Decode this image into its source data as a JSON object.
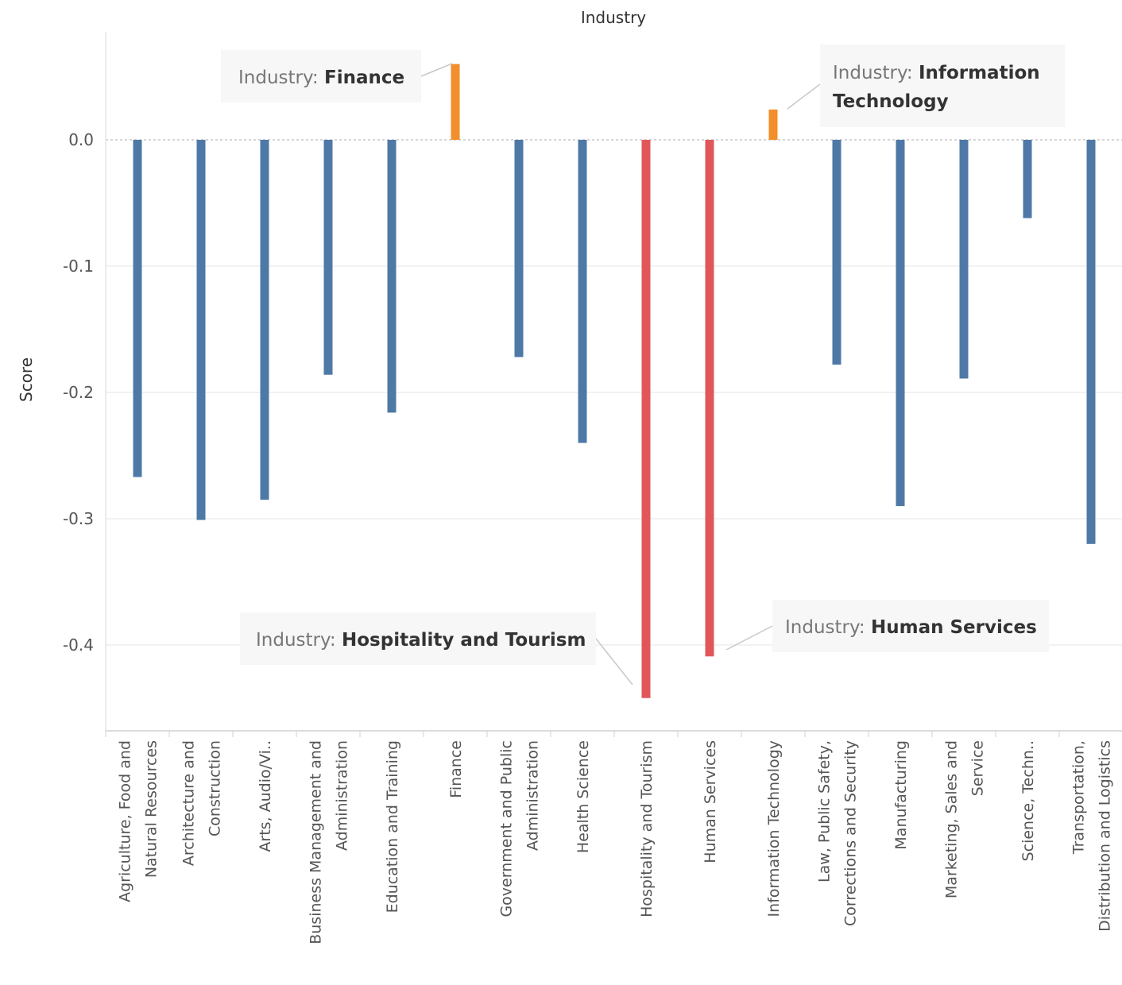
{
  "chart_data": {
    "type": "bar",
    "title": "Industry",
    "xlabel": "",
    "ylabel": "Score",
    "ylim": [
      -0.46,
      0.085
    ],
    "y_ticks": [
      0.0,
      -0.1,
      -0.2,
      -0.3,
      -0.4
    ],
    "y_tick_labels": [
      "0.0",
      "-0.1",
      "-0.2",
      "-0.3",
      "-0.4"
    ],
    "grid": true,
    "categories": [
      "Agriculture, Food and Natural Resources",
      "Architecture and Construction",
      "Arts, Audio/Vi..",
      "Business Management and Administration",
      "Education and Training",
      "Finance",
      "Government and Public Administration",
      "Health Science",
      "Hospitality and Tourism",
      "Human Services",
      "Information Technology",
      "Law, Public Safety, Corrections and Security",
      "Manufacturing",
      "Marketing, Sales and Service",
      "Science, Techn..",
      "Transportation, Distribution and Logistics"
    ],
    "category_label_lines": [
      [
        "Agriculture, Food and",
        "Natural Resources"
      ],
      [
        "Architecture and",
        "Construction"
      ],
      [
        "Arts, Audio/Vi.."
      ],
      [
        "Business Management and",
        "Administration"
      ],
      [
        "Education and Training"
      ],
      [
        "Finance"
      ],
      [
        "Government and Public",
        "Administration"
      ],
      [
        "Health Science"
      ],
      [
        "Hospitality and Tourism"
      ],
      [
        "Human Services"
      ],
      [
        "Information Technology"
      ],
      [
        "Law, Public Safety,",
        "Corrections and Security"
      ],
      [
        "Manufacturing"
      ],
      [
        "Marketing, Sales and",
        "Service"
      ],
      [
        "Science, Techn.."
      ],
      [
        "Transportation,",
        "Distribution and Logistics"
      ]
    ],
    "values": [
      -0.267,
      -0.301,
      -0.285,
      -0.186,
      -0.216,
      0.06,
      -0.172,
      -0.24,
      -0.442,
      -0.409,
      0.024,
      -0.178,
      -0.29,
      -0.189,
      -0.062,
      -0.32
    ],
    "bar_colors": [
      "#4e79a7",
      "#4e79a7",
      "#4e79a7",
      "#4e79a7",
      "#4e79a7",
      "#f28e2b",
      "#4e79a7",
      "#4e79a7",
      "#e15759",
      "#e15759",
      "#f28e2b",
      "#4e79a7",
      "#4e79a7",
      "#4e79a7",
      "#4e79a7",
      "#4e79a7"
    ],
    "annotations": [
      {
        "category": "Finance",
        "prefix": "Industry: ",
        "lines": [
          "Finance"
        ]
      },
      {
        "category": "Information Technology",
        "prefix": "Industry: ",
        "lines": [
          "Information",
          "Technology"
        ]
      },
      {
        "category": "Hospitality and Tourism",
        "prefix": "Industry: ",
        "lines": [
          "Hospitality and Tourism"
        ]
      },
      {
        "category": "Human Services",
        "prefix": "Industry: ",
        "lines": [
          "Human Services"
        ]
      }
    ]
  },
  "colors": {
    "negative": "#4e79a7",
    "positive_highlight": "#f28e2b",
    "lowest_highlight": "#e15759",
    "gridline": "#eeeeee",
    "zero_line": "#aaaaaa"
  }
}
